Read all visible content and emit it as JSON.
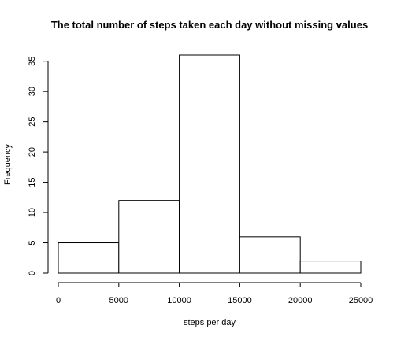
{
  "chart_data": {
    "type": "bar",
    "title": "The total number of steps taken each day without missing values",
    "xlabel": "steps per day",
    "ylabel": "Frequency",
    "bins": [
      {
        "start": 0,
        "end": 5000,
        "count": 5
      },
      {
        "start": 5000,
        "end": 10000,
        "count": 12
      },
      {
        "start": 10000,
        "end": 15000,
        "count": 36
      },
      {
        "start": 15000,
        "end": 20000,
        "count": 6
      },
      {
        "start": 20000,
        "end": 25000,
        "count": 2
      }
    ],
    "x_ticks": [
      0,
      5000,
      10000,
      15000,
      20000,
      25000
    ],
    "y_ticks": [
      0,
      5,
      10,
      15,
      20,
      25,
      30,
      35
    ],
    "xlim": [
      0,
      25000
    ],
    "ylim": [
      0,
      36
    ],
    "grid": false,
    "legend": "none"
  }
}
